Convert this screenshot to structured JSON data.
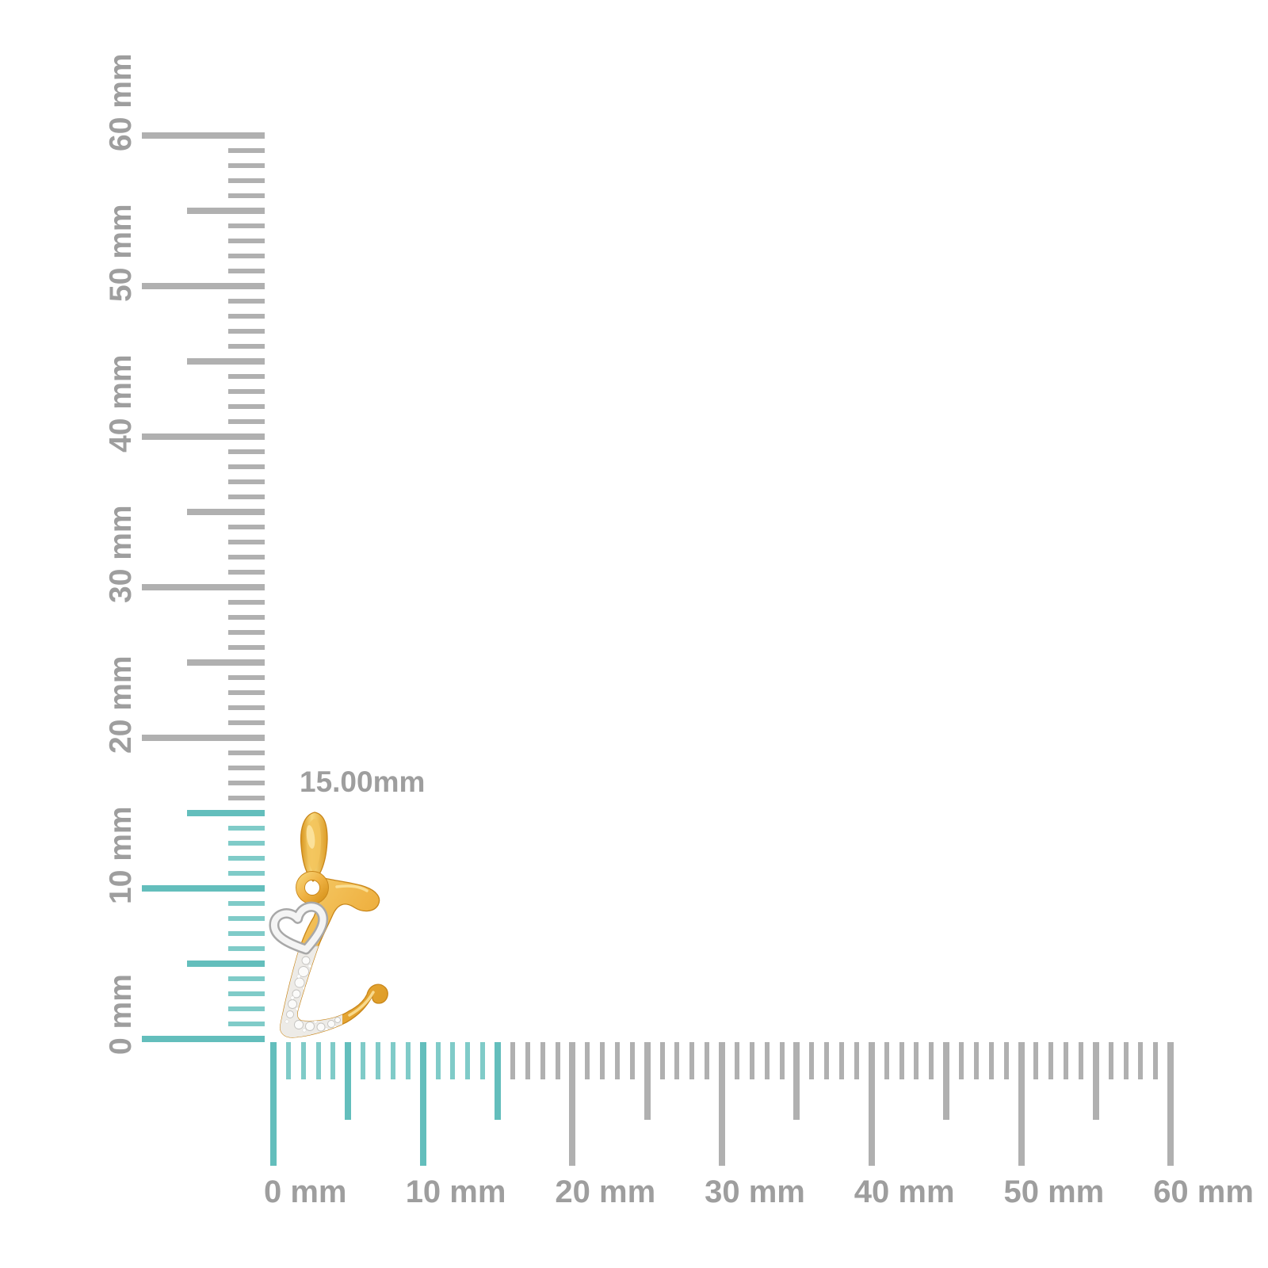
{
  "page": {
    "background": "#ffffff",
    "description": "Jewelry pendant size guide with millimeter rulers"
  },
  "size_annotation": {
    "text": "15.00mm"
  },
  "rulers": {
    "unit": "mm",
    "max_mm": 60,
    "minor_step_mm": 1,
    "medium_step_mm": 5,
    "major_step_mm": 10,
    "highlight_from_mm": 0,
    "highlight_to_mm": 15,
    "vertical_labels": [
      "0 mm",
      "10 mm",
      "20 mm",
      "30 mm",
      "40 mm",
      "50 mm",
      "60 mm"
    ],
    "horizontal_labels": [
      "0 mm",
      "10 mm",
      "20 mm",
      "30 mm",
      "40 mm",
      "50 mm",
      "60 mm"
    ]
  },
  "colors": {
    "tick_gray": "#b0b0b0",
    "tick_teal": "#63bebc",
    "tick_teal_minor": "#7fcbc8",
    "label_gray": "#9e9e9e",
    "background": "#ffffff"
  },
  "pendant": {
    "subject": "gold cursive letter L pendant with heart outline and diamond pave",
    "measured_height": "15.00mm",
    "materials": {
      "gold": "#efb243",
      "gold_dark": "#d9961f",
      "gold_light": "#f6d070",
      "white_metal": "#f4f4f4",
      "white_metal_edge": "#a8a8a8",
      "diamond_pave_bed": "#edebe7"
    }
  }
}
